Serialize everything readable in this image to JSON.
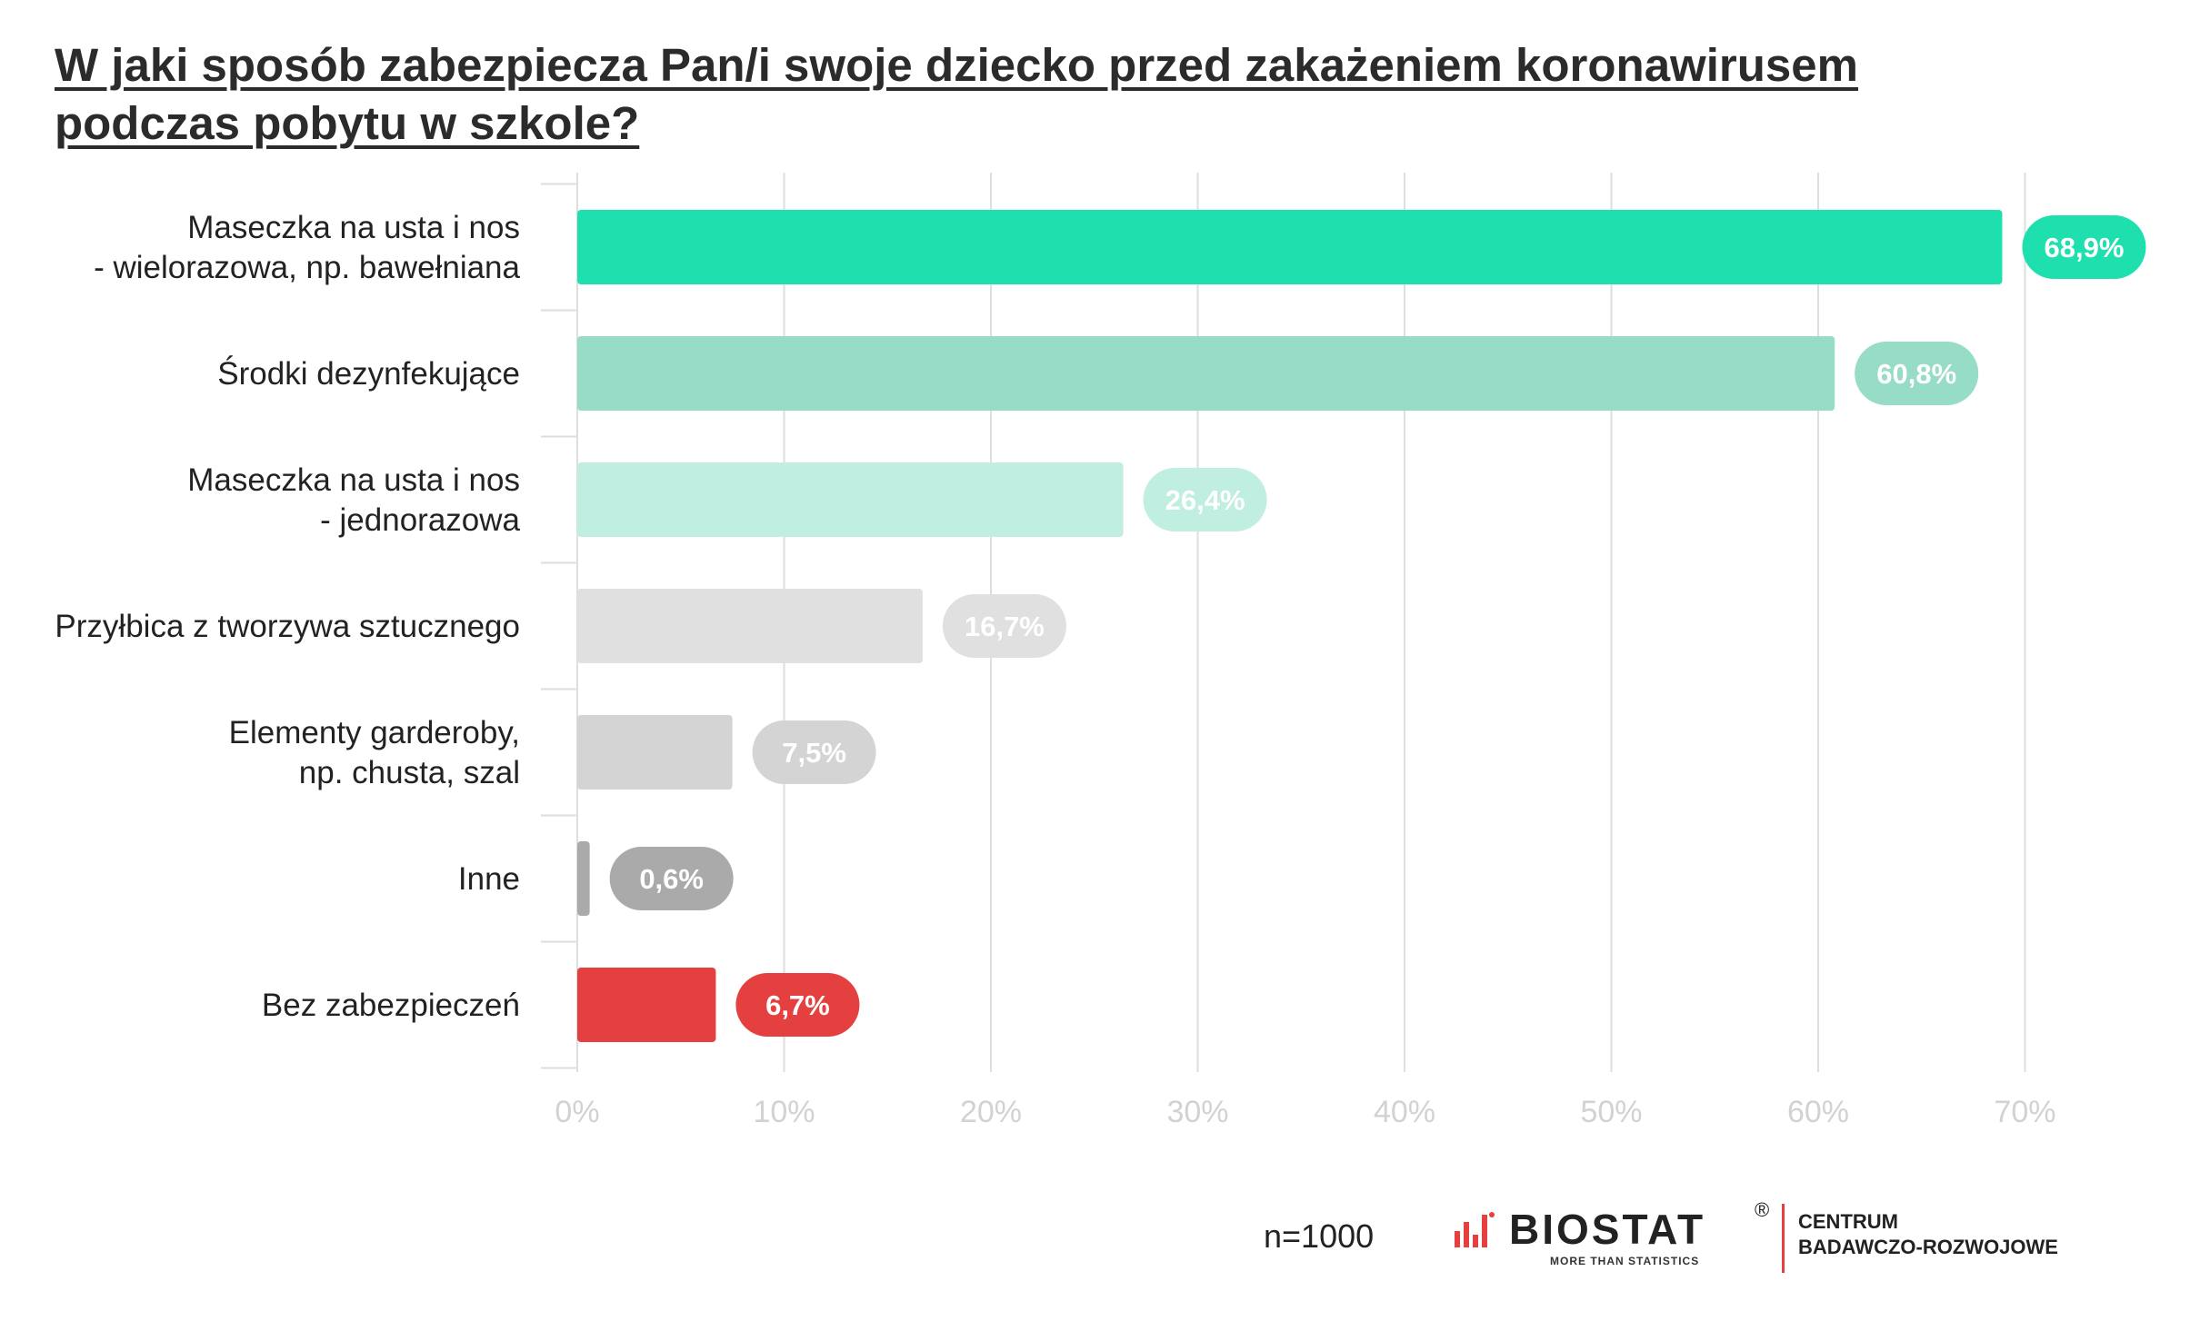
{
  "title": {
    "line1": "W jaki sposób zabezpiecza Pan/i swoje dziecko przed zakażeniem koronawirusem",
    "line2": "podczas pobytu w szkole?"
  },
  "chart_data": {
    "type": "bar",
    "orientation": "horizontal",
    "categories": [
      [
        "Maseczka na usta i nos",
        "- wielorazowa, np. bawełniana"
      ],
      [
        "Środki dezynfekujące"
      ],
      [
        "Maseczka na usta i nos",
        "- jednorazowa"
      ],
      [
        "Przyłbica z tworzywa sztucznego"
      ],
      [
        "Elementy garderoby,",
        "np. chusta, szal"
      ],
      [
        "Inne"
      ],
      [
        "Bez zabezpieczeń"
      ]
    ],
    "values": [
      68.9,
      60.8,
      26.4,
      16.7,
      7.5,
      0.6,
      6.7
    ],
    "value_labels": [
      "68,9%",
      "60,8%",
      "26,4%",
      "16,7%",
      "7,5%",
      "0,6%",
      "6,7%"
    ],
    "colors": [
      "#1de0ae",
      "#97dcc6",
      "#c0eee0",
      "#e0e0e0",
      "#d4d4d4",
      "#aaaaaa",
      "#e54040"
    ],
    "label_colors": [
      "#1de0ae",
      "#97dcc6",
      "#c0eee0",
      "#e0e0e0",
      "#d4d4d4",
      "#aaaaaa",
      "#e54040"
    ],
    "xlim": [
      0,
      70
    ],
    "xticks": [
      "0%",
      "10%",
      "20%",
      "30%",
      "40%",
      "50%",
      "60%",
      "70%"
    ],
    "grid": true,
    "xlabel": "",
    "ylabel": ""
  },
  "footer": {
    "n_label": "n=1000",
    "logo_text": "BIOSTAT",
    "logo_registered": "®",
    "logo_tagline": "MORE THAN STATISTICS",
    "center_line1": "CENTRUM",
    "center_line2": "BADAWCZO-ROZWOJOWE",
    "brand_color": "#e5403f"
  }
}
